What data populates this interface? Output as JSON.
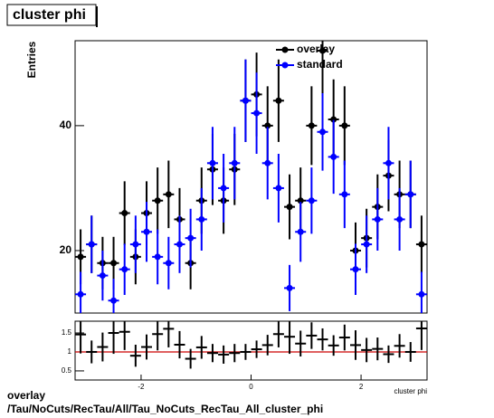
{
  "chart_data": [
    {
      "type": "errorbar",
      "title": "cluster phi",
      "ylabel": "Entries",
      "x": [
        -3.1,
        -2.9,
        -2.7,
        -2.5,
        -2.3,
        -2.1,
        -1.9,
        -1.7,
        -1.5,
        -1.3,
        -1.1,
        -0.9,
        -0.7,
        -0.5,
        -0.3,
        -0.1,
        0.1,
        0.3,
        0.5,
        0.7,
        0.9,
        1.1,
        1.3,
        1.5,
        1.7,
        1.9,
        2.1,
        2.3,
        2.5,
        2.7,
        2.9,
        3.1
      ],
      "series": [
        {
          "name": "overlay",
          "color": "#000000",
          "values": [
            19,
            21,
            18,
            18,
            26,
            19,
            26,
            28,
            29,
            25,
            18,
            28,
            33,
            28,
            33,
            44,
            45,
            40,
            44,
            27,
            28,
            40,
            52,
            41,
            40,
            20,
            22,
            27,
            32,
            29,
            29,
            21
          ],
          "errors": [
            4.4,
            4.6,
            4.2,
            4.2,
            5.1,
            4.4,
            5.1,
            5.3,
            5.4,
            5,
            4.2,
            5.3,
            5.7,
            5.3,
            5.7,
            6.6,
            6.7,
            6.3,
            6.6,
            5.2,
            5.3,
            6.3,
            7.2,
            6.4,
            6.3,
            4.5,
            4.7,
            5.2,
            5.7,
            5.4,
            5.4,
            4.6
          ]
        },
        {
          "name": "standard",
          "color": "#0000ff",
          "values": [
            13,
            21,
            16,
            12,
            17,
            21,
            23,
            19,
            18,
            21,
            22,
            25,
            34,
            30,
            34,
            44,
            42,
            34,
            30,
            14,
            23,
            28,
            39,
            35,
            29,
            17,
            21,
            25,
            34,
            25,
            29,
            13
          ],
          "errors": [
            3.6,
            4.6,
            4,
            3.5,
            4.1,
            4.6,
            4.8,
            4.4,
            4.2,
            4.6,
            4.7,
            5,
            5.8,
            5.5,
            5.8,
            6.6,
            6.5,
            5.8,
            5.5,
            3.7,
            4.8,
            5.3,
            6.2,
            5.9,
            5.4,
            4.1,
            4.6,
            5,
            5.8,
            5,
            5.4,
            3.6
          ]
        }
      ],
      "xlim": [
        -3.2,
        3.2
      ],
      "ylim": [
        10,
        53.6
      ],
      "yticks": [
        20,
        40
      ]
    },
    {
      "type": "errorbar",
      "xlabel": "cluster phi",
      "x": [
        -3.1,
        -2.9,
        -2.7,
        -2.5,
        -2.3,
        -2.1,
        -1.9,
        -1.7,
        -1.5,
        -1.3,
        -1.1,
        -0.9,
        -0.7,
        -0.5,
        -0.3,
        -0.1,
        0.1,
        0.3,
        0.5,
        0.7,
        0.9,
        1.1,
        1.3,
        1.5,
        1.7,
        1.9,
        2.1,
        2.3,
        2.5,
        2.7,
        2.9,
        3.1
      ],
      "series": [
        {
          "color": "#000000",
          "values": [
            1.46,
            1,
            1.13,
            1.5,
            1.53,
            0.9,
            1.13,
            1.47,
            1.61,
            1.19,
            0.82,
            1.12,
            0.97,
            0.93,
            0.97,
            1,
            1.07,
            1.18,
            1.47,
            1.4,
            1.22,
            1.43,
            1.33,
            1.17,
            1.38,
            1.18,
            1.05,
            1.08,
            0.94,
            1.16,
            1,
            1.62
          ],
          "errors": [
            0.5,
            0.3,
            0.38,
            0.55,
            0.48,
            0.29,
            0.33,
            0.43,
            0.49,
            0.36,
            0.26,
            0.3,
            0.24,
            0.24,
            0.24,
            0.21,
            0.23,
            0.27,
            0.35,
            0.45,
            0.34,
            0.35,
            0.29,
            0.27,
            0.34,
            0.39,
            0.32,
            0.3,
            0.23,
            0.31,
            0.26,
            0.57
          ]
        }
      ],
      "reference_line": {
        "value": 1,
        "color": "#cc0000"
      },
      "xlim": [
        -3.2,
        3.2
      ],
      "ylim": [
        0.26,
        1.81
      ],
      "xticks": [
        -2,
        0,
        2
      ],
      "yticks": [
        0.5,
        1,
        1.5
      ]
    }
  ],
  "footer": {
    "line1": "overlay",
    "line2": "/Tau/NoCuts/RecTau/All/Tau_NoCuts_RecTau_All_cluster_phi"
  }
}
